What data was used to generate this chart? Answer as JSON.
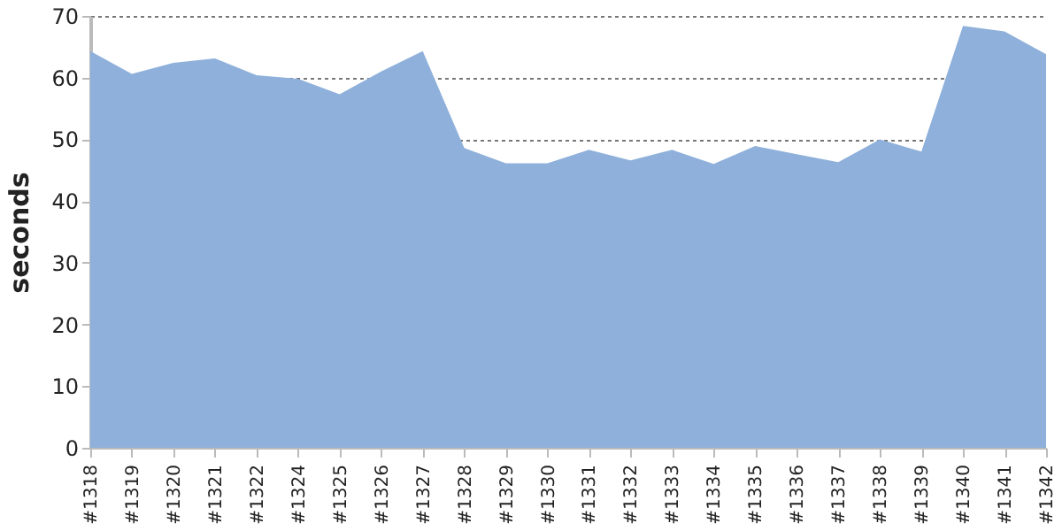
{
  "chart_data": {
    "type": "area",
    "ylabel": "seconds",
    "categories": [
      "#1318",
      "#1319",
      "#1320",
      "#1321",
      "#1322",
      "#1324",
      "#1325",
      "#1326",
      "#1327",
      "#1328",
      "#1329",
      "#1330",
      "#1331",
      "#1332",
      "#1333",
      "#1334",
      "#1335",
      "#1336",
      "#1337",
      "#1338",
      "#1339",
      "#1340",
      "#1341",
      "#1342"
    ],
    "series": [
      {
        "color": "#8eb0da",
        "values": [
          64.3,
          60.6,
          62.4,
          63.1,
          60.4,
          59.8,
          57.3,
          61,
          64.3,
          48.6,
          46.1,
          46.1,
          48.3,
          46.6,
          48.3,
          46,
          48.9,
          47.6,
          46.3,
          50,
          48,
          68.4,
          67.5,
          63.8
        ]
      }
    ],
    "ylim": [
      0,
      70
    ],
    "yticks": [
      0,
      10,
      20,
      30,
      40,
      50,
      60,
      70
    ],
    "grid": "y"
  }
}
